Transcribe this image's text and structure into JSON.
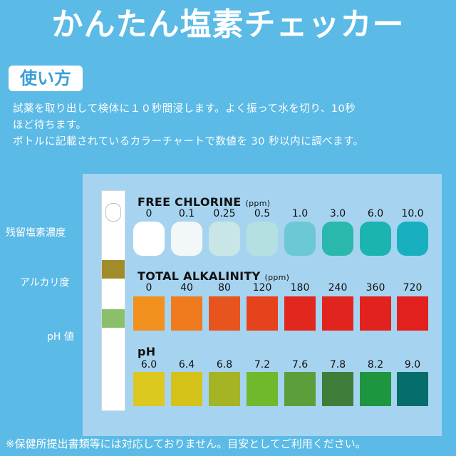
{
  "title": "かんたん塩素チェッカー",
  "usage_label": "使い方",
  "instructions": [
    "試薬を取り出して検体に１０秒間浸します。よく振って水を切り、10秒",
    "ほど待ちます。",
    "ボトルに記載されているカラーチャートで数値を 30 秒以内に調べます。"
  ],
  "strip_labels": {
    "chlorine": "残留塩素濃度",
    "alkalinity": "アルカリ度",
    "ph": "pH 値"
  },
  "strip_pad_colors": {
    "alkalinity": "#a18c2a",
    "ph": "#8ac06a"
  },
  "sections": [
    {
      "title": "FREE CHLORINE",
      "unit": "(ppm)",
      "values": [
        "0",
        "0.1",
        "0.25",
        "0.5",
        "1.0",
        "3.0",
        "6.0",
        "10.0"
      ],
      "colors": [
        "#ffffff",
        "#f2f7f8",
        "#c8e6e6",
        "#b4e0e2",
        "#6cc8d4",
        "#2ab8ac",
        "#1cb4b0",
        "#18b0c0"
      ]
    },
    {
      "title": "TOTAL ALKALINITY",
      "unit": "(ppm)",
      "values": [
        "0",
        "40",
        "80",
        "120",
        "180",
        "240",
        "360",
        "720"
      ],
      "colors": [
        "#f2901e",
        "#f07a1e",
        "#e8541e",
        "#e6421c",
        "#e2281e",
        "#e2241e",
        "#e2221e",
        "#e2201e"
      ]
    },
    {
      "title": "pH",
      "unit": "",
      "values": [
        "6.0",
        "6.4",
        "6.8",
        "7.2",
        "7.6",
        "7.8",
        "8.2",
        "9.0"
      ],
      "colors": [
        "#dcc81e",
        "#d4c218",
        "#a4b424",
        "#70b82c",
        "#5c9e3a",
        "#3e7e3a",
        "#1e9640",
        "#066e6a"
      ]
    }
  ],
  "footer": "※保健所提出書類等には対応しておりません。目安としてご利用ください。"
}
